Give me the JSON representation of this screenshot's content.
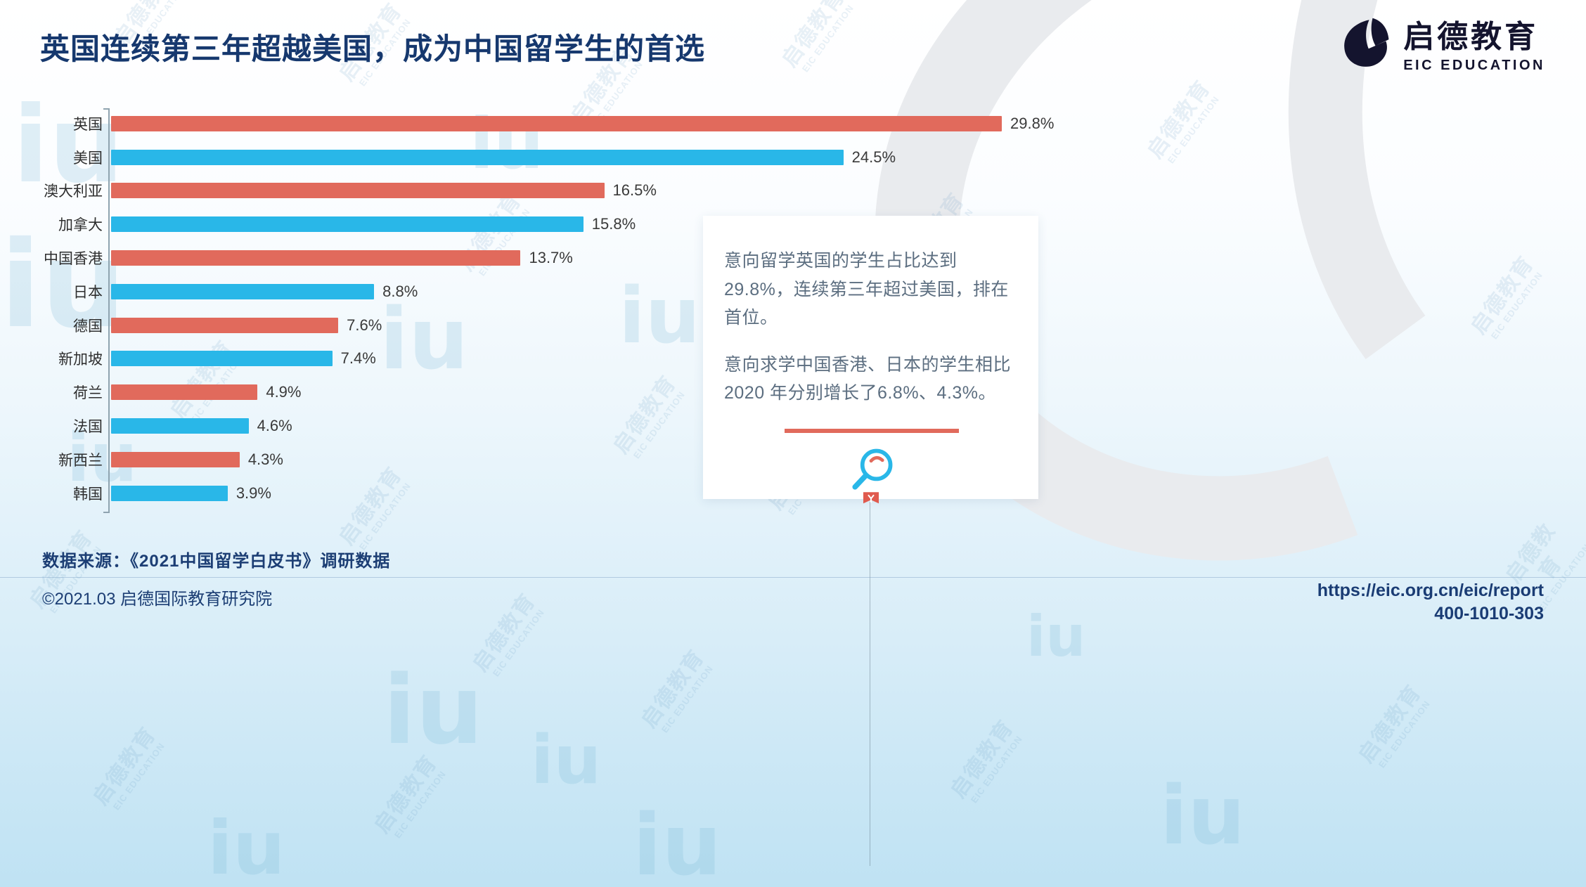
{
  "page": {
    "title": "英国连续第三年超越美国，成为中国留学生的首选"
  },
  "logo": {
    "name_cn": "启德教育",
    "name_en": "EIC EDUCATION"
  },
  "chart_data": {
    "type": "bar",
    "orientation": "horizontal",
    "title": "英国连续第三年超越美国，成为中国留学生的首选",
    "categories": [
      "英国",
      "美国",
      "澳大利亚",
      "加拿大",
      "中国香港",
      "日本",
      "德国",
      "新加坡",
      "荷兰",
      "法国",
      "新西兰",
      "韩国"
    ],
    "values": [
      29.8,
      24.5,
      16.5,
      15.8,
      13.7,
      8.8,
      7.6,
      7.4,
      4.9,
      4.6,
      4.3,
      3.9
    ],
    "value_labels": [
      "29.8%",
      "24.5%",
      "16.5%",
      "15.8%",
      "13.7%",
      "8.8%",
      "7.6%",
      "7.4%",
      "4.9%",
      "4.6%",
      "4.3%",
      "3.9%"
    ],
    "bar_colors_alternate": [
      "#E16A5C",
      "#29B7E8"
    ],
    "xlim": [
      0,
      29.8
    ],
    "grid": false,
    "legend": false
  },
  "callout": {
    "paragraph1": "意向留学英国的学生占比达到29.8%，连续第三年超过美国，排在首位。",
    "paragraph2": "意向求学中国香港、日本的学生相比 2020 年分别增长了6.8%、4.3%。"
  },
  "footer": {
    "source": "数据来源：《2021中国留学白皮书》调研数据",
    "copyright": "©2021.03 启德国际教育研究院",
    "report_url": "https://eic.org.cn/eic/report",
    "phone": "400-1010-303"
  },
  "watermark": {
    "text_cn": "启德教育",
    "text_en": "EIC EDUCATION",
    "mark": "iu"
  },
  "colors": {
    "red": "#E16A5C",
    "blue": "#29B7E8",
    "title_navy": "#16386E"
  }
}
